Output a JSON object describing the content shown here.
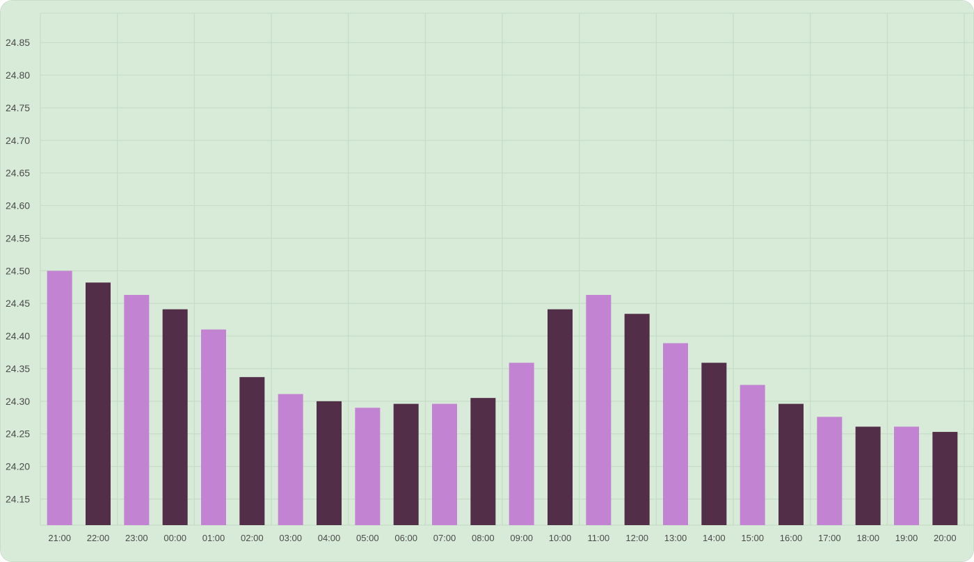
{
  "colors": {
    "background": "#d8ebd8",
    "grid": "#c6dcc6",
    "bar_light": "#c283d2",
    "bar_dark": "#522e48",
    "text": "#4a4a4a"
  },
  "chart_data": {
    "type": "bar",
    "categories": [
      "21:00",
      "22:00",
      "23:00",
      "00:00",
      "01:00",
      "02:00",
      "03:00",
      "04:00",
      "05:00",
      "06:00",
      "07:00",
      "08:00",
      "09:00",
      "10:00",
      "11:00",
      "12:00",
      "13:00",
      "14:00",
      "15:00",
      "16:00",
      "17:00",
      "18:00",
      "19:00",
      "20:00"
    ],
    "values": [
      24.5,
      24.482,
      24.463,
      24.441,
      24.41,
      24.337,
      24.311,
      24.3,
      24.29,
      24.296,
      24.296,
      24.305,
      24.359,
      24.441,
      24.463,
      24.434,
      24.389,
      24.359,
      24.325,
      24.296,
      24.276,
      24.261,
      24.261,
      24.253
    ],
    "bar_colors": [
      "light",
      "dark",
      "light",
      "dark",
      "light",
      "dark",
      "light",
      "dark",
      "light",
      "dark",
      "light",
      "dark",
      "light",
      "dark",
      "light",
      "dark",
      "light",
      "dark",
      "light",
      "dark",
      "light",
      "dark",
      "light",
      "dark"
    ],
    "yticks": [
      "24.15",
      "24.20",
      "24.25",
      "24.30",
      "24.35",
      "24.40",
      "24.45",
      "24.50",
      "24.55",
      "24.60",
      "24.65",
      "24.70",
      "24.75",
      "24.80",
      "24.85"
    ],
    "ylim": [
      24.11,
      24.895
    ],
    "title": "",
    "xlabel": "",
    "ylabel": "",
    "grid": true,
    "legend": "none"
  }
}
